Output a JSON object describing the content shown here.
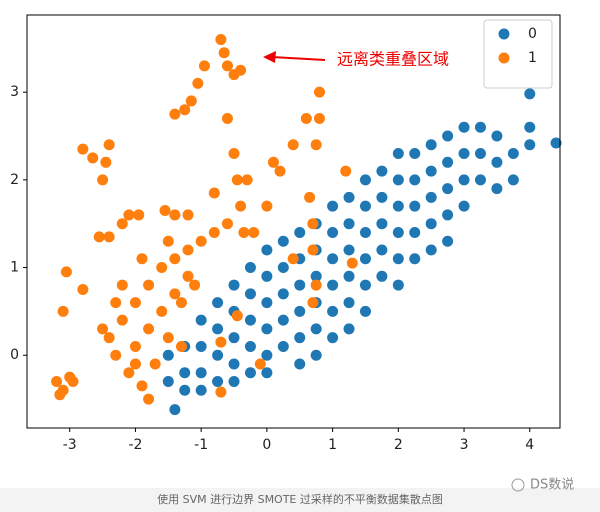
{
  "chart_data": {
    "type": "scatter",
    "annotation": "远离类重叠区域",
    "caption": "使用 SVM 进行边界 SMOTE 过采样的不平衡数据集散点图",
    "watermark": "DS数说",
    "legend": "upper right",
    "xlim": [
      -3.65,
      4.46
    ],
    "ylim": [
      -0.83,
      3.88
    ],
    "xticks": [
      -3,
      -2,
      -1,
      0,
      1,
      2,
      3,
      4
    ],
    "yticks": [
      0,
      1,
      2,
      3
    ],
    "series": [
      {
        "name": "0",
        "color": "#1f77b4",
        "x": [
          -1.5,
          -1.5,
          -1.25,
          -1.25,
          -1.25,
          -1,
          -1,
          -1,
          -1,
          -0.75,
          -0.75,
          -0.75,
          -0.75,
          -0.5,
          -0.5,
          -0.5,
          -0.5,
          -0.5,
          -0.25,
          -0.25,
          -0.25,
          -0.25,
          -0.25,
          0,
          0,
          0,
          0,
          0,
          0,
          0.25,
          0.25,
          0.25,
          0.25,
          0.25,
          0.5,
          0.5,
          0.5,
          0.5,
          0.5,
          0.5,
          0.75,
          0.75,
          0.75,
          0.75,
          0.75,
          0.75,
          1,
          1,
          1,
          1,
          1,
          1,
          1.25,
          1.25,
          1.25,
          1.25,
          1.25,
          1.25,
          1.5,
          1.5,
          1.5,
          1.5,
          1.5,
          1.5,
          1.75,
          1.75,
          1.75,
          1.75,
          1.75,
          2,
          2,
          2,
          2,
          2,
          2,
          2.25,
          2.25,
          2.25,
          2.25,
          2.25,
          2.5,
          2.5,
          2.5,
          2.5,
          2.5,
          2.75,
          2.75,
          2.75,
          2.75,
          2.75,
          3,
          3,
          3,
          3,
          3.25,
          3.25,
          3.25,
          3.5,
          3.5,
          3.5,
          3.75,
          3.75,
          4,
          4,
          4,
          4.4,
          -1.4
        ],
        "values": [
          0.0,
          -0.3,
          0.1,
          -0.2,
          -0.4,
          0.4,
          0.1,
          -0.2,
          -0.4,
          0.6,
          0.3,
          0.0,
          -0.3,
          0.8,
          0.5,
          0.2,
          -0.1,
          -0.3,
          1.0,
          0.7,
          0.4,
          0.1,
          -0.2,
          1.2,
          0.9,
          0.6,
          0.3,
          0.0,
          -0.2,
          1.3,
          1.0,
          0.7,
          0.4,
          0.1,
          1.4,
          1.1,
          0.8,
          0.5,
          0.2,
          -0.1,
          1.5,
          1.2,
          0.9,
          0.6,
          0.3,
          0.0,
          1.7,
          1.4,
          1.1,
          0.8,
          0.5,
          0.2,
          1.8,
          1.5,
          1.2,
          0.9,
          0.6,
          0.3,
          2.0,
          1.7,
          1.4,
          1.1,
          0.8,
          0.5,
          2.1,
          1.8,
          1.5,
          1.2,
          0.9,
          2.3,
          2.0,
          1.7,
          1.4,
          1.1,
          0.8,
          2.3,
          2.0,
          1.7,
          1.4,
          1.1,
          2.4,
          2.1,
          1.8,
          1.5,
          1.2,
          2.5,
          2.2,
          1.9,
          1.6,
          1.3,
          2.6,
          2.3,
          2.0,
          1.7,
          2.6,
          2.3,
          2.0,
          2.5,
          2.2,
          1.9,
          2.3,
          2.0,
          2.98,
          2.6,
          2.4,
          2.42,
          -0.62
        ]
      },
      {
        "name": "1",
        "color": "#ff7f0e",
        "x": [
          -3.2,
          -3.1,
          -3.0,
          -3.15,
          -2.95,
          -3.1,
          -3.05,
          -2.8,
          -2.55,
          -2.4,
          -2.2,
          -2.1,
          -1.95,
          -1.55,
          -1.4,
          -1.2,
          -2.8,
          -2.65,
          -2.5,
          -2.45,
          -2.4,
          -1.4,
          -1.25,
          -1.15,
          -1.05,
          -0.95,
          -0.7,
          -0.65,
          -0.6,
          -0.5,
          -0.4,
          -0.6,
          -0.2,
          0,
          0.2,
          0.4,
          0.6,
          0.8,
          -0.5,
          -0.45,
          -0.4,
          -0.35,
          -0.8,
          -0.3,
          0.1,
          0.7,
          0.7,
          0.65,
          0.75,
          0.8,
          -2.4,
          -2.2,
          -2.0,
          -1.8,
          -1.6,
          -1.4,
          -1.2,
          -1.0,
          -0.8,
          -0.6,
          -2.3,
          -2.1,
          -1.9,
          -1.8,
          -2.0,
          -1.8,
          -1.6,
          -1.4,
          -1.2,
          -1.7,
          -1.5,
          -2.5,
          -2.3,
          -1.9,
          -1.5,
          -1.3,
          -1.1,
          -2.0,
          -2.2,
          0.4,
          0.7,
          0.75,
          1.3,
          -0.45,
          -0.7,
          -0.1,
          -1.3,
          -0.7,
          1.2
        ],
        "values": [
          -0.3,
          -0.4,
          -0.25,
          -0.45,
          -0.3,
          0.5,
          0.95,
          0.75,
          1.35,
          1.35,
          1.5,
          1.6,
          1.6,
          1.65,
          1.6,
          1.6,
          2.35,
          2.25,
          2.0,
          2.2,
          2.4,
          2.75,
          2.8,
          2.9,
          3.1,
          3.3,
          3.6,
          3.45,
          3.3,
          3.2,
          3.25,
          2.7,
          1.4,
          1.7,
          2.1,
          2.4,
          2.7,
          3.0,
          2.3,
          2.0,
          1.7,
          1.4,
          1.85,
          2.0,
          2.2,
          1.5,
          1.2,
          1.8,
          2.4,
          2.7,
          0.2,
          0.4,
          0.6,
          0.8,
          1.0,
          1.1,
          1.2,
          1.3,
          1.4,
          1.5,
          0.0,
          -0.2,
          -0.35,
          -0.5,
          0.1,
          0.3,
          0.5,
          0.7,
          0.9,
          -0.1,
          0.2,
          0.3,
          0.6,
          1.1,
          1.3,
          0.6,
          0.8,
          -0.1,
          0.8,
          1.1,
          0.6,
          0.8,
          1.05,
          0.45,
          0.15,
          -0.1,
          0.1,
          -0.42,
          2.1
        ]
      }
    ]
  }
}
